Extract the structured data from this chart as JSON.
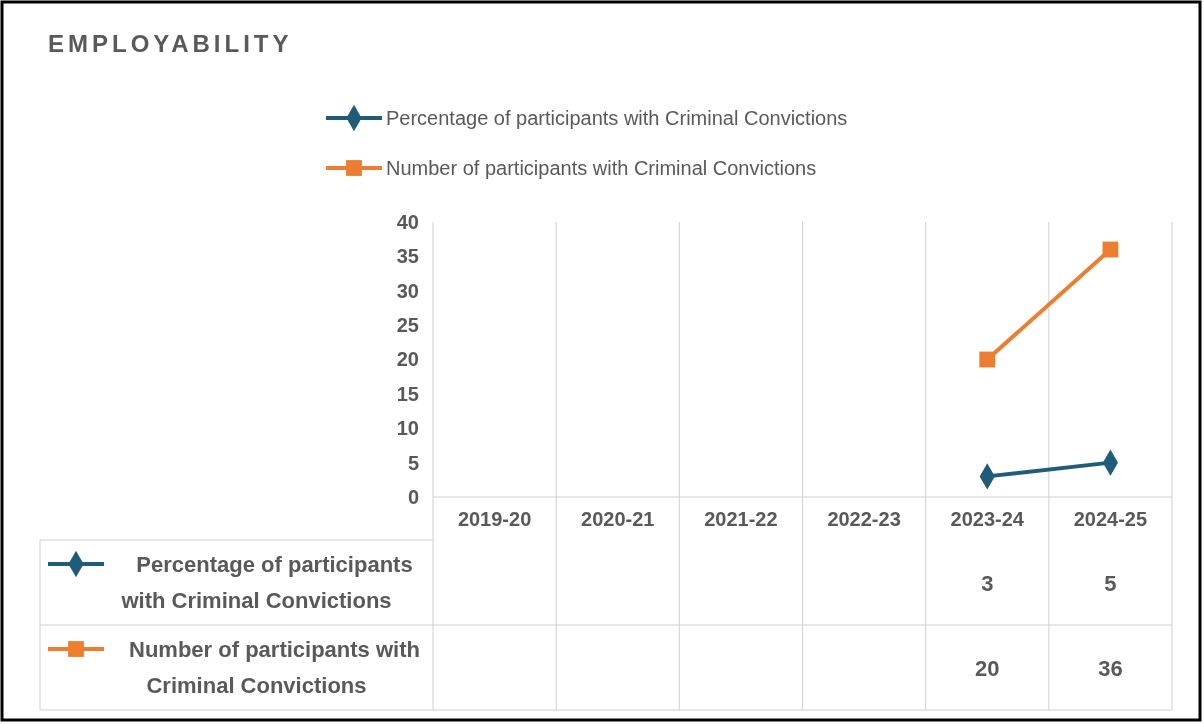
{
  "chart_data": {
    "type": "line",
    "title": "EMPLOYABILITY",
    "categories": [
      "2019-20",
      "2020-21",
      "2021-22",
      "2022-23",
      "2023-24",
      "2024-25"
    ],
    "series": [
      {
        "name": "Percentage of participants with Criminal Convictions",
        "color": "#1f5c7a",
        "marker": "diamond",
        "values": [
          null,
          null,
          null,
          null,
          3,
          5
        ]
      },
      {
        "name": "Number of participants with Criminal Convictions",
        "color": "#ed7d31",
        "marker": "square",
        "values": [
          null,
          null,
          null,
          null,
          20,
          36
        ]
      }
    ],
    "ylim": [
      0,
      40
    ],
    "yticks": [
      0,
      5,
      10,
      15,
      20,
      25,
      30,
      35,
      40
    ],
    "grid": "x",
    "legend": "top",
    "data_labels": true,
    "line_style": "solid"
  }
}
